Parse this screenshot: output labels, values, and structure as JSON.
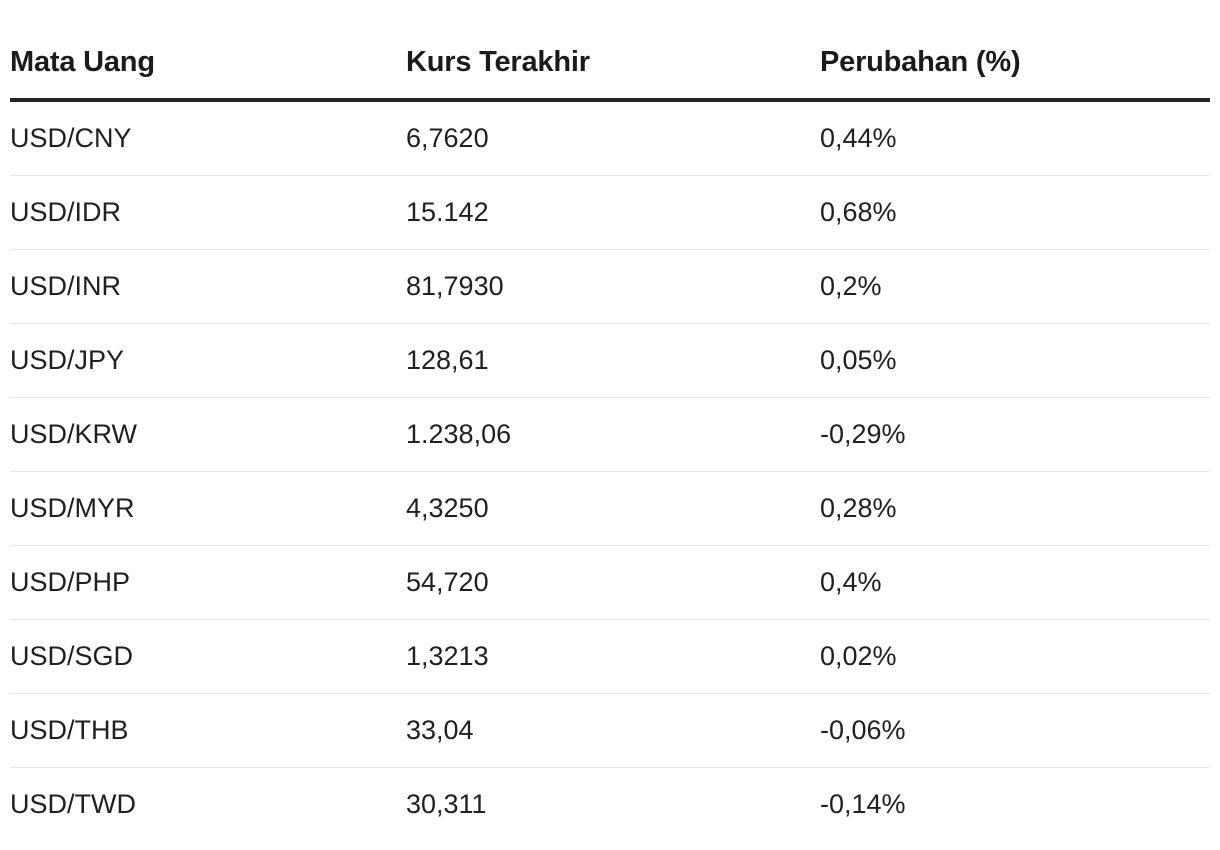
{
  "table": {
    "headers": [
      "Mata Uang",
      "Kurs Terakhir",
      "Perubahan (%)"
    ],
    "rows": [
      {
        "pair": "USD/CNY",
        "rate": "6,7620",
        "change": "0,44%"
      },
      {
        "pair": "USD/IDR",
        "rate": "15.142",
        "change": "0,68%"
      },
      {
        "pair": "USD/INR",
        "rate": "81,7930",
        "change": "0,2%"
      },
      {
        "pair": "USD/JPY",
        "rate": "128,61",
        "change": "0,05%"
      },
      {
        "pair": "USD/KRW",
        "rate": "1.238,06",
        "change": "-0,29%"
      },
      {
        "pair": "USD/MYR",
        "rate": "4,3250",
        "change": "0,28%"
      },
      {
        "pair": "USD/PHP",
        "rate": "54,720",
        "change": "0,4%"
      },
      {
        "pair": "USD/SGD",
        "rate": "1,3213",
        "change": "0,02%"
      },
      {
        "pair": "USD/THB",
        "rate": "33,04",
        "change": "-0,06%"
      },
      {
        "pair": "USD/TWD",
        "rate": "30,311",
        "change": "-0,14%"
      }
    ]
  }
}
